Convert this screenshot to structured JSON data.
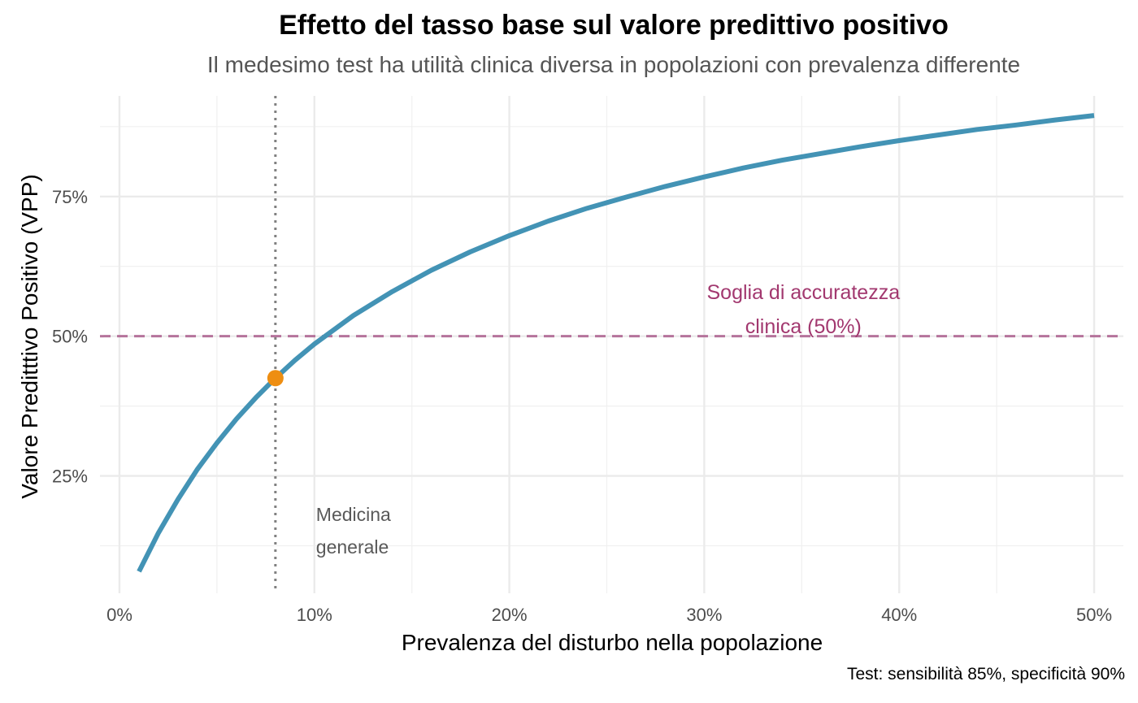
{
  "chart_data": {
    "type": "line",
    "title": "Effetto del tasso base sul valore predittivo positivo",
    "subtitle": "Il medesimo test ha utilità clinica diversa in popolazioni con prevalenza differente",
    "xlabel": "Prevalenza del disturbo nella popolazione",
    "ylabel": "Valore Preditttivo Positivo (VPP)",
    "caption": "Test: sensibilità 85%, specificità 90%",
    "xlim": [
      -0.01,
      0.515
    ],
    "ylim": [
      0.04,
      0.93
    ],
    "x_ticks": [
      0,
      0.1,
      0.2,
      0.3,
      0.4,
      0.5
    ],
    "x_tick_labels": [
      "0%",
      "10%",
      "20%",
      "30%",
      "40%",
      "50%"
    ],
    "y_ticks": [
      0.25,
      0.5,
      0.75
    ],
    "y_tick_labels": [
      "25%",
      "50%",
      "75%"
    ],
    "grid": true,
    "legend": "none",
    "series": [
      {
        "sensitivity": 0.85,
        "specificity": 0.9,
        "color": "#4393B5",
        "x": [
          0.01,
          0.02,
          0.03,
          0.04,
          0.05,
          0.06,
          0.07,
          0.08,
          0.09,
          0.1,
          0.12,
          0.14,
          0.16,
          0.18,
          0.2,
          0.22,
          0.24,
          0.26,
          0.28,
          0.3,
          0.32,
          0.34,
          0.36,
          0.38,
          0.4,
          0.42,
          0.44,
          0.46,
          0.48,
          0.5
        ],
        "y": [
          0.079,
          0.148,
          0.208,
          0.262,
          0.309,
          0.352,
          0.39,
          0.425,
          0.457,
          0.486,
          0.537,
          0.58,
          0.618,
          0.651,
          0.68,
          0.706,
          0.729,
          0.749,
          0.768,
          0.785,
          0.801,
          0.815,
          0.827,
          0.839,
          0.85,
          0.86,
          0.87,
          0.878,
          0.887,
          0.895
        ]
      }
    ],
    "reference_lines": [
      {
        "orientation": "horizontal",
        "value": 0.5,
        "style": "dashed",
        "color": "#B5739B"
      },
      {
        "orientation": "vertical",
        "value": 0.08,
        "style": "dotted",
        "color": "#808080"
      }
    ],
    "highlight_point": {
      "x": 0.08,
      "y": 0.425,
      "color": "#EE8E12"
    },
    "annotations": [
      {
        "lines": [
          "Soglia di accuratezza",
          "clinica (50%)"
        ],
        "x": 0.35,
        "y": 0.5,
        "color": "#A2386F"
      },
      {
        "lines": [
          "Medicina",
          "generale"
        ],
        "x": 0.1,
        "y": 0.15,
        "color": "#595959"
      }
    ]
  }
}
